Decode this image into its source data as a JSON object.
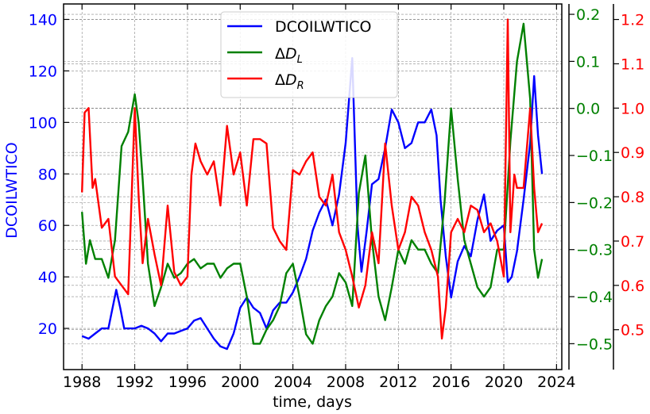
{
  "chart_data": {
    "type": "line",
    "xlabel": "time, days",
    "ylabel": "DCOILWTICO",
    "grid": true,
    "legend_position": "top-center",
    "x_ticks": [
      "1988",
      "1992",
      "1996",
      "2000",
      "2004",
      "2008",
      "2012",
      "2016",
      "2020",
      "2024"
    ],
    "xlim": [
      1986.6,
      2024.4
    ],
    "axes": {
      "left": {
        "ylim": [
          4,
          146
        ],
        "ticks": [
          "20",
          "40",
          "60",
          "80",
          "100",
          "120",
          "140"
        ],
        "color": "#0000ff"
      },
      "right1": {
        "ylim": [
          -0.555,
          0.222
        ],
        "ticks": [
          "−0.5",
          "−0.4",
          "−0.3",
          "−0.2",
          "−0.1",
          "0.0",
          "0.1",
          "0.2"
        ],
        "color": "#008000"
      },
      "right2": {
        "ylim": [
          0.41,
          1.235
        ],
        "ticks": [
          "0.5",
          "0.6",
          "0.7",
          "0.8",
          "0.9",
          "1.0",
          "1.1",
          "1.2"
        ],
        "color": "#ff0000"
      }
    },
    "series": [
      {
        "name": "DCOILWTICO",
        "axis": "left",
        "color": "#0000ff",
        "x": [
          1988.0,
          1988.5,
          1989.0,
          1989.5,
          1990.0,
          1990.6,
          1990.9,
          1991.2,
          1991.6,
          1992.0,
          1992.5,
          1993.0,
          1993.5,
          1994.0,
          1994.5,
          1995.0,
          1995.5,
          1996.0,
          1996.5,
          1997.0,
          1997.5,
          1998.0,
          1998.5,
          1999.0,
          1999.5,
          2000.0,
          2000.5,
          2001.0,
          2001.5,
          2002.0,
          2002.5,
          2003.0,
          2003.5,
          2004.0,
          2004.5,
          2005.0,
          2005.5,
          2006.0,
          2006.5,
          2007.0,
          2007.5,
          2008.0,
          2008.5,
          2008.9,
          2009.2,
          2009.6,
          2010.0,
          2010.5,
          2011.0,
          2011.5,
          2012.0,
          2012.5,
          2013.0,
          2013.5,
          2014.0,
          2014.5,
          2014.9,
          2015.2,
          2015.6,
          2016.0,
          2016.5,
          2017.0,
          2017.5,
          2018.0,
          2018.5,
          2019.0,
          2019.5,
          2020.0,
          2020.3,
          2020.6,
          2021.0,
          2021.5,
          2022.0,
          2022.3,
          2022.6,
          2022.9
        ],
        "values": [
          17,
          16,
          18,
          20,
          20,
          35,
          28,
          20,
          20,
          20,
          21,
          20,
          18,
          15,
          18,
          18,
          19,
          20,
          23,
          24,
          20,
          16,
          13,
          12,
          18,
          28,
          32,
          28,
          26,
          20,
          27,
          30,
          30,
          34,
          40,
          47,
          58,
          65,
          70,
          60,
          72,
          92,
          125,
          60,
          42,
          58,
          76,
          78,
          90,
          105,
          100,
          90,
          92,
          100,
          100,
          105,
          95,
          70,
          48,
          32,
          46,
          52,
          48,
          62,
          72,
          54,
          58,
          60,
          38,
          40,
          50,
          70,
          92,
          118,
          95,
          80
        ]
      },
      {
        "name": "ΔD_L",
        "axis": "right1",
        "color": "#008000",
        "x": [
          1988.0,
          1988.3,
          1988.6,
          1989.0,
          1989.5,
          1990.0,
          1990.5,
          1991.0,
          1991.5,
          1992.0,
          1992.3,
          1992.6,
          1993.0,
          1993.5,
          1994.0,
          1994.5,
          1995.0,
          1995.5,
          1996.0,
          1996.5,
          1997.0,
          1997.5,
          1998.0,
          1998.5,
          1999.0,
          1999.5,
          2000.0,
          2000.5,
          2001.0,
          2001.5,
          2002.0,
          2002.5,
          2003.0,
          2003.5,
          2004.0,
          2004.5,
          2005.0,
          2005.5,
          2006.0,
          2006.5,
          2007.0,
          2007.5,
          2008.0,
          2008.5,
          2009.0,
          2009.5,
          2010.0,
          2010.5,
          2011.0,
          2011.5,
          2012.0,
          2012.5,
          2013.0,
          2013.5,
          2014.0,
          2014.5,
          2015.0,
          2015.5,
          2016.0,
          2016.5,
          2017.0,
          2017.5,
          2018.0,
          2018.5,
          2019.0,
          2019.5,
          2020.0,
          2020.5,
          2021.0,
          2021.5,
          2022.0,
          2022.3,
          2022.6,
          2022.9
        ],
        "values": [
          -0.22,
          -0.33,
          -0.28,
          -0.32,
          -0.32,
          -0.36,
          -0.28,
          -0.08,
          -0.05,
          0.03,
          -0.03,
          -0.15,
          -0.33,
          -0.42,
          -0.38,
          -0.33,
          -0.36,
          -0.35,
          -0.33,
          -0.32,
          -0.34,
          -0.33,
          -0.33,
          -0.36,
          -0.34,
          -0.33,
          -0.33,
          -0.4,
          -0.5,
          -0.5,
          -0.47,
          -0.45,
          -0.42,
          -0.35,
          -0.33,
          -0.4,
          -0.48,
          -0.5,
          -0.45,
          -0.42,
          -0.4,
          -0.35,
          -0.37,
          -0.42,
          -0.18,
          -0.1,
          -0.28,
          -0.4,
          -0.45,
          -0.38,
          -0.3,
          -0.33,
          -0.28,
          -0.3,
          -0.3,
          -0.33,
          -0.35,
          -0.2,
          0.0,
          -0.15,
          -0.28,
          -0.33,
          -0.38,
          -0.4,
          -0.38,
          -0.3,
          -0.3,
          -0.07,
          0.1,
          0.18,
          0.02,
          -0.3,
          -0.36,
          -0.32
        ]
      },
      {
        "name": "ΔD_R",
        "axis": "right2",
        "color": "#ff0000",
        "x": [
          1988.0,
          1988.2,
          1988.5,
          1988.8,
          1989.0,
          1989.5,
          1990.0,
          1990.5,
          1991.0,
          1991.5,
          1992.0,
          1992.3,
          1992.6,
          1993.0,
          1993.5,
          1994.0,
          1994.5,
          1995.0,
          1995.5,
          1996.0,
          1996.3,
          1996.6,
          1997.0,
          1997.5,
          1998.0,
          1998.5,
          1999.0,
          1999.5,
          2000.0,
          2000.5,
          2001.0,
          2001.5,
          2002.0,
          2002.5,
          2003.0,
          2003.5,
          2004.0,
          2004.5,
          2005.0,
          2005.5,
          2006.0,
          2006.5,
          2007.0,
          2007.5,
          2008.0,
          2008.5,
          2009.0,
          2009.5,
          2010.0,
          2010.5,
          2011.0,
          2011.5,
          2012.0,
          2012.5,
          2013.0,
          2013.5,
          2014.0,
          2014.5,
          2015.0,
          2015.3,
          2015.6,
          2016.0,
          2016.5,
          2017.0,
          2017.5,
          2018.0,
          2018.5,
          2019.0,
          2019.5,
          2020.0,
          2020.3,
          2020.5,
          2020.8,
          2021.0,
          2021.5,
          2022.0,
          2022.3,
          2022.6,
          2022.9
        ],
        "values": [
          0.81,
          0.99,
          1.0,
          0.82,
          0.84,
          0.73,
          0.75,
          0.62,
          0.6,
          0.58,
          1.0,
          0.8,
          0.65,
          0.75,
          0.67,
          0.6,
          0.78,
          0.63,
          0.6,
          0.62,
          0.85,
          0.92,
          0.88,
          0.85,
          0.88,
          0.78,
          0.96,
          0.85,
          0.9,
          0.78,
          0.93,
          0.93,
          0.92,
          0.73,
          0.7,
          0.68,
          0.86,
          0.85,
          0.88,
          0.9,
          0.8,
          0.78,
          0.85,
          0.72,
          0.68,
          0.62,
          0.55,
          0.6,
          0.72,
          0.65,
          0.92,
          0.78,
          0.68,
          0.72,
          0.8,
          0.78,
          0.72,
          0.68,
          0.62,
          0.48,
          0.55,
          0.72,
          0.75,
          0.72,
          0.78,
          0.77,
          0.72,
          0.74,
          0.7,
          0.62,
          1.2,
          0.72,
          0.85,
          0.82,
          0.82,
          1.0,
          0.82,
          0.72,
          0.74
        ]
      }
    ]
  }
}
